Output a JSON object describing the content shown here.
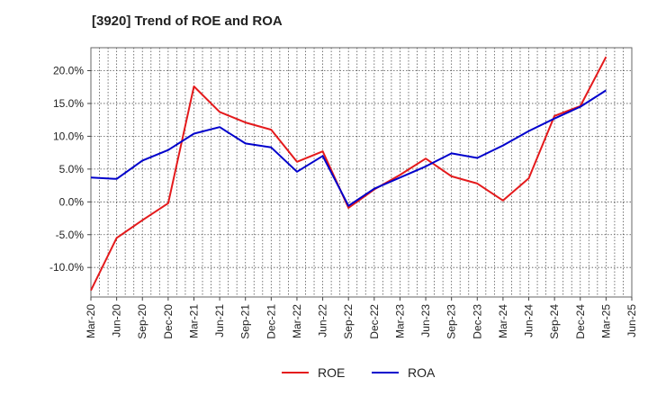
{
  "chart_data": {
    "type": "line",
    "title": "[3920]  Trend of ROE and ROA",
    "xlabel": "",
    "ylabel": "",
    "x": [
      "Mar-20",
      "Jun-20",
      "Sep-20",
      "Dec-20",
      "Mar-21",
      "Jun-21",
      "Sep-21",
      "Dec-21",
      "Mar-22",
      "Jun-22",
      "Sep-22",
      "Dec-22",
      "Mar-23",
      "Jun-23",
      "Sep-23",
      "Dec-23",
      "Mar-24",
      "Jun-24",
      "Sep-24",
      "Dec-24",
      "Mar-25",
      "Jun-25"
    ],
    "ylim": [
      -14.5,
      23.5
    ],
    "yticks": [
      20,
      15,
      10,
      5,
      0,
      -5,
      -10
    ],
    "ytick_labels": [
      "20.0%",
      "15.0%",
      "10.0%",
      "5.0%",
      "0.0%",
      "-5.0%",
      "-10.0%"
    ],
    "grid": true,
    "legend_position": "bottom-center",
    "series": [
      {
        "name": "ROE",
        "color": "#e41a1c",
        "values": [
          -13.5,
          -5.5,
          -2.8,
          -0.2,
          17.6,
          13.7,
          12.1,
          11.0,
          6.1,
          7.7,
          -0.9,
          1.9,
          4.1,
          6.6,
          3.9,
          2.8,
          0.2,
          3.6,
          13.1,
          14.6,
          22.1,
          null
        ]
      },
      {
        "name": "ROA",
        "color": "#0000cc",
        "values": [
          3.7,
          3.5,
          6.3,
          7.9,
          10.4,
          11.4,
          8.9,
          8.3,
          4.6,
          7.0,
          -0.6,
          2.0,
          3.7,
          5.4,
          7.4,
          6.7,
          8.6,
          10.8,
          12.7,
          14.5,
          17.0,
          null
        ]
      }
    ]
  }
}
